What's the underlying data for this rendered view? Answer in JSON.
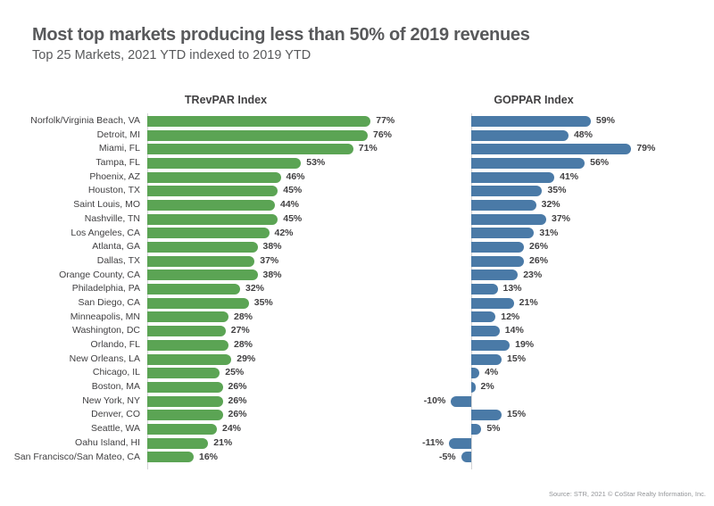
{
  "header": {
    "title": "Most top markets producing less than 50% of 2019 revenues",
    "subtitle": "Top 25 Markets, 2021 YTD indexed to 2019 YTD"
  },
  "chart_data": {
    "type": "bar",
    "orientation": "horizontal",
    "left_title": "TRevPAR Index",
    "right_title": "GOPPAR Index",
    "categories": [
      "Norfolk/Virginia Beach, VA",
      "Detroit, MI",
      "Miami, FL",
      "Tampa, FL",
      "Phoenix, AZ",
      "Houston, TX",
      "Saint Louis, MO",
      "Nashville, TN",
      "Los Angeles, CA",
      "Atlanta, GA",
      "Dallas, TX",
      "Orange County, CA",
      "Philadelphia, PA",
      "San Diego, CA",
      "Minneapolis, MN",
      "Washington, DC",
      "Orlando, FL",
      "New Orleans, LA",
      "Chicago, IL",
      "Boston, MA",
      "New York, NY",
      "Denver, CO",
      "Seattle, WA",
      "Oahu Island, HI",
      "San Francisco/San Mateo, CA"
    ],
    "series": [
      {
        "name": "TRevPAR Index",
        "color": "#5ba454",
        "values": [
          77,
          76,
          71,
          53,
          46,
          45,
          44,
          45,
          42,
          38,
          37,
          38,
          32,
          35,
          28,
          27,
          28,
          29,
          25,
          26,
          26,
          26,
          24,
          21,
          16
        ]
      },
      {
        "name": "GOPPAR Index",
        "color": "#4a7aa7",
        "values": [
          59,
          48,
          79,
          56,
          41,
          35,
          32,
          37,
          31,
          26,
          26,
          23,
          13,
          21,
          12,
          14,
          19,
          15,
          4,
          2,
          -10,
          15,
          5,
          -11,
          -5
        ]
      }
    ],
    "value_suffix": "%",
    "value_labels": "outside-end",
    "grid": "off",
    "xlim_trevpar": [
      0,
      80
    ],
    "xlim_goppar": [
      -15,
      80
    ]
  },
  "footer": {
    "source": "Source: STR, 2021 © CoStar Realty Information, Inc."
  }
}
